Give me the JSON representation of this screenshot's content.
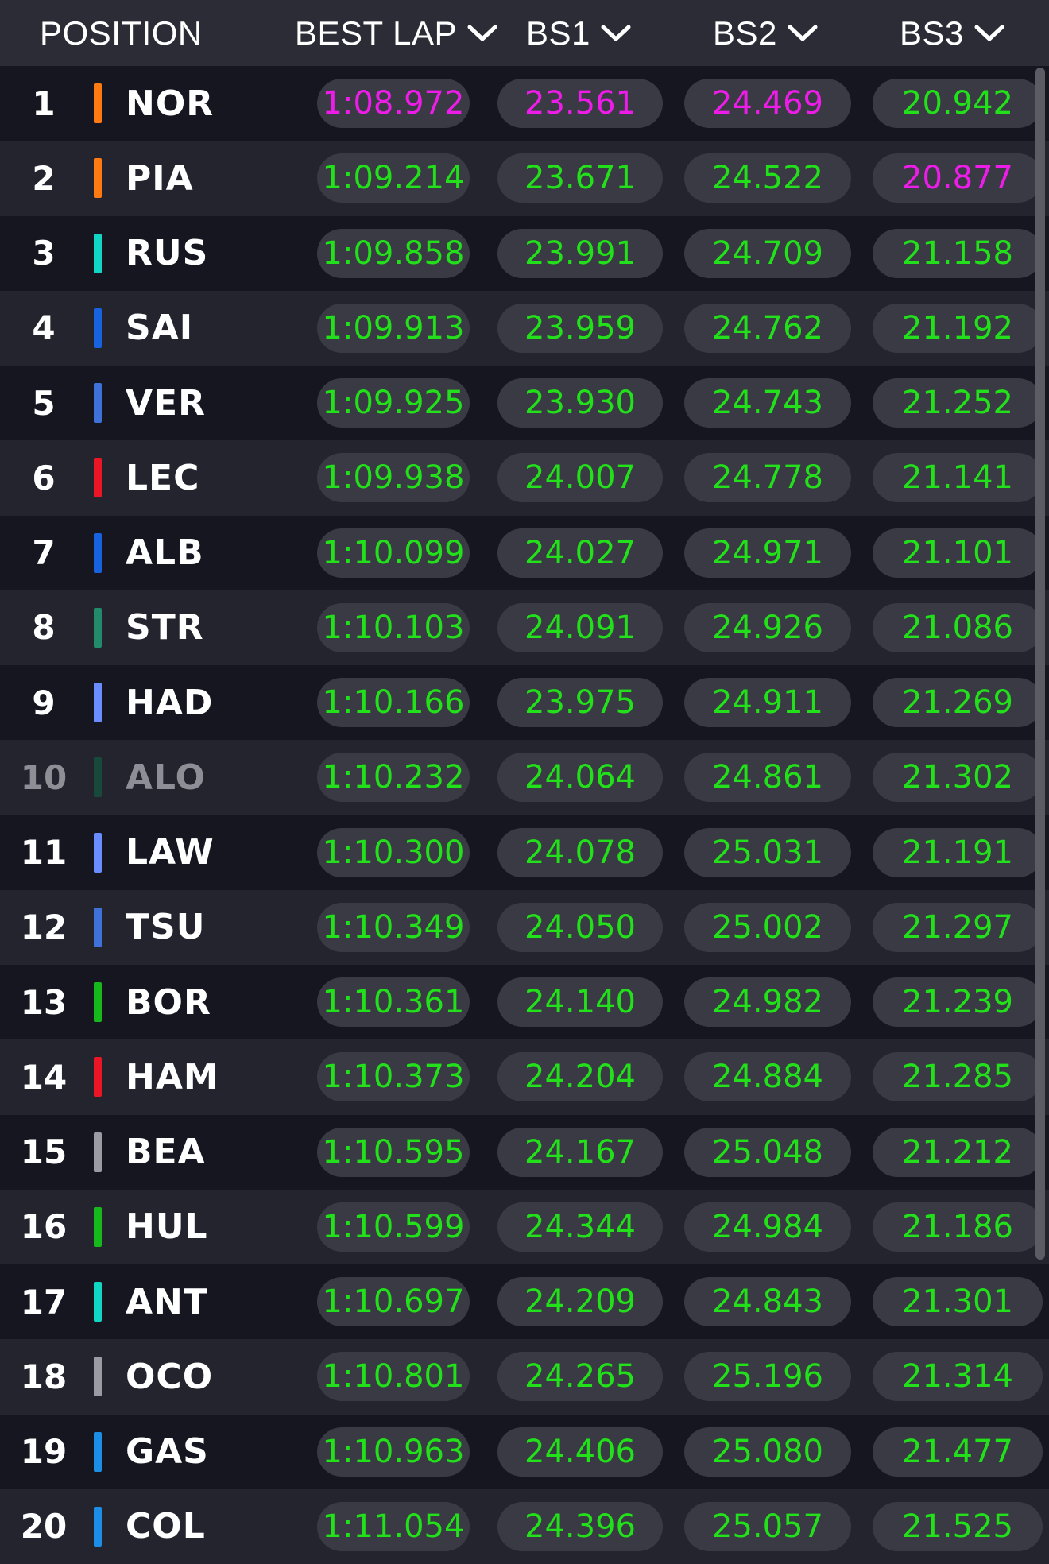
{
  "header": {
    "position": "POSITION",
    "best_lap": "BEST LAP",
    "bs1": "BS1",
    "bs2": "BS2",
    "bs3": "BS3"
  },
  "colors": {
    "green": "#22e01a",
    "purple": "#ee1ce8"
  },
  "rows": [
    {
      "pos": "1",
      "driver": "NOR",
      "team_color": "#ff7a12",
      "best": "1:08.972",
      "bs1": "23.561",
      "bs2": "24.469",
      "bs3": "20.942",
      "purple": [
        "best",
        "bs1",
        "bs2"
      ]
    },
    {
      "pos": "2",
      "driver": "PIA",
      "team_color": "#ff7a12",
      "best": "1:09.214",
      "bs1": "23.671",
      "bs2": "24.522",
      "bs3": "20.877",
      "purple": [
        "bs3"
      ]
    },
    {
      "pos": "3",
      "driver": "RUS",
      "team_color": "#12d6c4",
      "best": "1:09.858",
      "bs1": "23.991",
      "bs2": "24.709",
      "bs3": "21.158",
      "purple": []
    },
    {
      "pos": "4",
      "driver": "SAI",
      "team_color": "#1862e0",
      "best": "1:09.913",
      "bs1": "23.959",
      "bs2": "24.762",
      "bs3": "21.192",
      "purple": []
    },
    {
      "pos": "5",
      "driver": "VER",
      "team_color": "#3f72d8",
      "best": "1:09.925",
      "bs1": "23.930",
      "bs2": "24.743",
      "bs3": "21.252",
      "purple": []
    },
    {
      "pos": "6",
      "driver": "LEC",
      "team_color": "#ea1626",
      "best": "1:09.938",
      "bs1": "24.007",
      "bs2": "24.778",
      "bs3": "21.141",
      "purple": []
    },
    {
      "pos": "7",
      "driver": "ALB",
      "team_color": "#1862e0",
      "best": "1:10.099",
      "bs1": "24.027",
      "bs2": "24.971",
      "bs3": "21.101",
      "purple": []
    },
    {
      "pos": "8",
      "driver": "STR",
      "team_color": "#238a6c",
      "best": "1:10.103",
      "bs1": "24.091",
      "bs2": "24.926",
      "bs3": "21.086",
      "purple": []
    },
    {
      "pos": "9",
      "driver": "HAD",
      "team_color": "#6a8cff",
      "best": "1:10.166",
      "bs1": "23.975",
      "bs2": "24.911",
      "bs3": "21.269",
      "purple": []
    },
    {
      "pos": "10",
      "driver": "ALO",
      "team_color": "#174a3a",
      "best": "1:10.232",
      "bs1": "24.064",
      "bs2": "24.861",
      "bs3": "21.302",
      "purple": [],
      "dim": true
    },
    {
      "pos": "11",
      "driver": "LAW",
      "team_color": "#6a8cff",
      "best": "1:10.300",
      "bs1": "24.078",
      "bs2": "25.031",
      "bs3": "21.191",
      "purple": []
    },
    {
      "pos": "12",
      "driver": "TSU",
      "team_color": "#3f72d8",
      "best": "1:10.349",
      "bs1": "24.050",
      "bs2": "25.002",
      "bs3": "21.297",
      "purple": []
    },
    {
      "pos": "13",
      "driver": "BOR",
      "team_color": "#17b81c",
      "best": "1:10.361",
      "bs1": "24.140",
      "bs2": "24.982",
      "bs3": "21.239",
      "purple": []
    },
    {
      "pos": "14",
      "driver": "HAM",
      "team_color": "#ea1626",
      "best": "1:10.373",
      "bs1": "24.204",
      "bs2": "24.884",
      "bs3": "21.285",
      "purple": []
    },
    {
      "pos": "15",
      "driver": "BEA",
      "team_color": "#9a9ba3",
      "best": "1:10.595",
      "bs1": "24.167",
      "bs2": "25.048",
      "bs3": "21.212",
      "purple": []
    },
    {
      "pos": "16",
      "driver": "HUL",
      "team_color": "#17b81c",
      "best": "1:10.599",
      "bs1": "24.344",
      "bs2": "24.984",
      "bs3": "21.186",
      "purple": []
    },
    {
      "pos": "17",
      "driver": "ANT",
      "team_color": "#12d6c4",
      "best": "1:10.697",
      "bs1": "24.209",
      "bs2": "24.843",
      "bs3": "21.301",
      "purple": []
    },
    {
      "pos": "18",
      "driver": "OCO",
      "team_color": "#9a9ba3",
      "best": "1:10.801",
      "bs1": "24.265",
      "bs2": "25.196",
      "bs3": "21.314",
      "purple": []
    },
    {
      "pos": "19",
      "driver": "GAS",
      "team_color": "#1c8ee6",
      "best": "1:10.963",
      "bs1": "24.406",
      "bs2": "25.080",
      "bs3": "21.477",
      "purple": []
    },
    {
      "pos": "20",
      "driver": "COL",
      "team_color": "#1c8ee6",
      "best": "1:11.054",
      "bs1": "24.396",
      "bs2": "25.057",
      "bs3": "21.525",
      "purple": []
    }
  ]
}
